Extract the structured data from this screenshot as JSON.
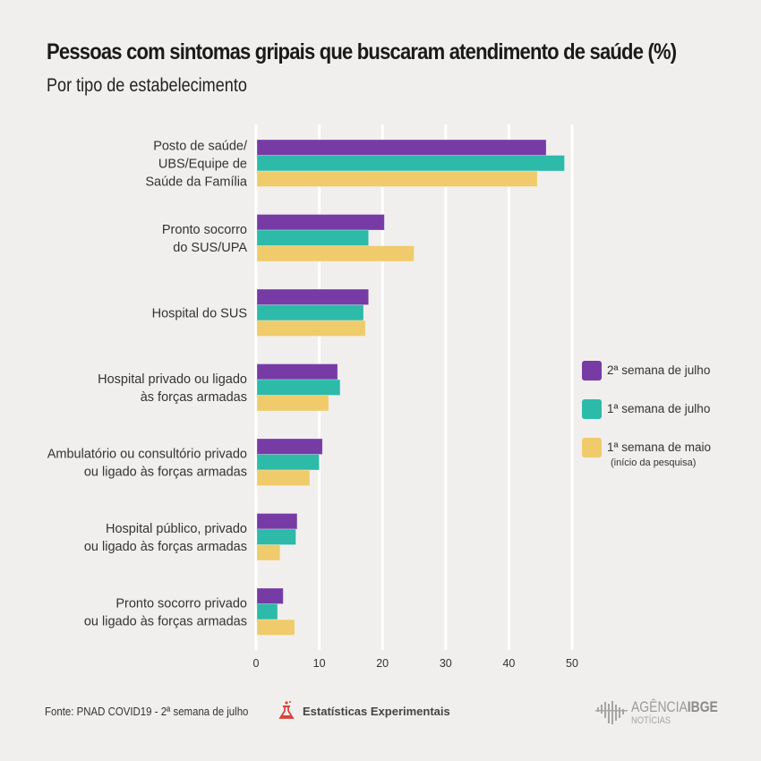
{
  "colors": {
    "background": "#f0efed",
    "gridline": "#ffffff",
    "series": [
      "#773ba6",
      "#2dbaa9",
      "#efcb6b"
    ],
    "flask_icon": "#d9433b",
    "logo_gray": "#9a9a9a"
  },
  "chart_data": {
    "type": "bar",
    "orientation": "horizontal",
    "title": "Pessoas com sintomas gripais que buscaram atendimento de saúde (%)",
    "subtitle": "Por tipo de estabelecimento",
    "xlabel": "",
    "ylabel": "",
    "xlim": [
      0,
      50
    ],
    "xticks": [
      0,
      10,
      20,
      30,
      40,
      50
    ],
    "xtick_labels": [
      "0",
      "10",
      "20",
      "30",
      "40",
      "50"
    ],
    "grid": "vertical",
    "legend_position": "right",
    "categories": [
      [
        "Posto de saúde/",
        "UBS/Equipe de",
        "Saúde da Família"
      ],
      [
        "Pronto socorro",
        "do SUS/UPA"
      ],
      [
        "Hospital do SUS"
      ],
      [
        "Hospital privado ou ligado",
        "às forças armadas"
      ],
      [
        "Ambulatório ou consultório privado",
        "ou ligado às forças armadas"
      ],
      [
        "Hospital público, privado",
        "ou ligado às forças armadas"
      ],
      [
        "Pronto socorro privado",
        "ou ligado às forças armadas"
      ]
    ],
    "series": [
      {
        "name": "2ª semana de julho",
        "note": "",
        "values": [
          45.9,
          20.3,
          17.8,
          12.9,
          10.5,
          6.5,
          4.3
        ]
      },
      {
        "name": "1ª semana de julho",
        "note": "",
        "values": [
          48.8,
          17.8,
          17.0,
          13.3,
          10.0,
          6.3,
          3.4
        ]
      },
      {
        "name": "1ª semana de maio",
        "note": "(início da pesquisa)",
        "values": [
          44.5,
          25.0,
          17.3,
          11.5,
          8.5,
          3.8,
          6.1
        ]
      }
    ]
  },
  "footer": {
    "source": "Fonte: PNAD COVID19 - 2ª semana de julho",
    "stat_label": "Estatísticas Experimentais",
    "stat_icon": "flask-icon",
    "logo_main_light": "AGÊNCIA",
    "logo_main_bold": "IBGE",
    "logo_sub": "NOTÍCIAS"
  }
}
